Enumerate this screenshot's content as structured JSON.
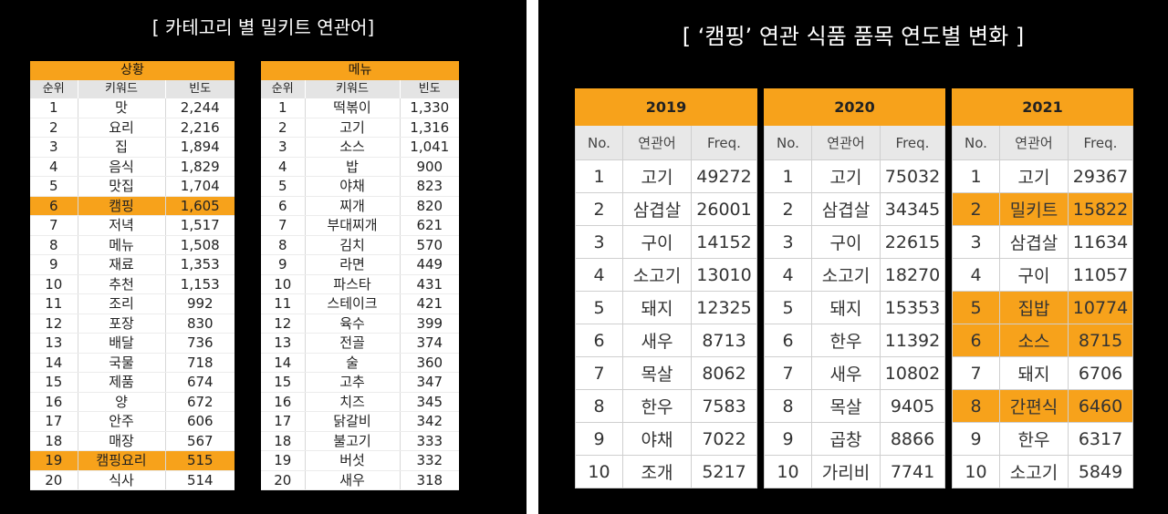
{
  "left": {
    "title": "[ 카테고리 별 밀키트 연관어]",
    "tables": [
      {
        "group": "상황",
        "headers": [
          "순위",
          "키워드",
          "빈도"
        ],
        "rows": [
          [
            "1",
            "맛",
            "2,244"
          ],
          [
            "2",
            "요리",
            "2,216"
          ],
          [
            "3",
            "집",
            "1,894"
          ],
          [
            "4",
            "음식",
            "1,829"
          ],
          [
            "5",
            "맛집",
            "1,704"
          ],
          [
            "6",
            "캠핑",
            "1,605"
          ],
          [
            "7",
            "저녁",
            "1,517"
          ],
          [
            "8",
            "메뉴",
            "1,508"
          ],
          [
            "9",
            "재료",
            "1,353"
          ],
          [
            "10",
            "추천",
            "1,153"
          ],
          [
            "11",
            "조리",
            "992"
          ],
          [
            "12",
            "포장",
            "830"
          ],
          [
            "13",
            "배달",
            "736"
          ],
          [
            "14",
            "국물",
            "718"
          ],
          [
            "15",
            "제품",
            "674"
          ],
          [
            "16",
            "양",
            "672"
          ],
          [
            "17",
            "안주",
            "606"
          ],
          [
            "18",
            "매장",
            "567"
          ],
          [
            "19",
            "캠핑요리",
            "515"
          ],
          [
            "20",
            "식사",
            "514"
          ]
        ],
        "highlight_rows": [
          5,
          18
        ]
      },
      {
        "group": "메뉴",
        "headers": [
          "순위",
          "키워드",
          "빈도"
        ],
        "rows": [
          [
            "1",
            "떡볶이",
            "1,330"
          ],
          [
            "2",
            "고기",
            "1,316"
          ],
          [
            "3",
            "소스",
            "1,041"
          ],
          [
            "4",
            "밥",
            "900"
          ],
          [
            "5",
            "야채",
            "823"
          ],
          [
            "6",
            "찌개",
            "820"
          ],
          [
            "7",
            "부대찌개",
            "621"
          ],
          [
            "8",
            "김치",
            "570"
          ],
          [
            "9",
            "라면",
            "449"
          ],
          [
            "10",
            "파스타",
            "431"
          ],
          [
            "11",
            "스테이크",
            "421"
          ],
          [
            "12",
            "육수",
            "399"
          ],
          [
            "13",
            "전골",
            "374"
          ],
          [
            "14",
            "술",
            "360"
          ],
          [
            "15",
            "고추",
            "347"
          ],
          [
            "16",
            "치즈",
            "345"
          ],
          [
            "17",
            "닭갈비",
            "342"
          ],
          [
            "18",
            "불고기",
            "333"
          ],
          [
            "19",
            "버섯",
            "332"
          ],
          [
            "20",
            "새우",
            "318"
          ]
        ],
        "highlight_rows": []
      }
    ]
  },
  "right": {
    "title": "[ ‘캠핑’ 연관 식품 품목 연도별 변화 ]",
    "tables": [
      {
        "year": "2019",
        "headers": [
          "No.",
          "연관어",
          "Freq."
        ],
        "rows": [
          [
            "1",
            "고기",
            "49272"
          ],
          [
            "2",
            "삼겹살",
            "26001"
          ],
          [
            "3",
            "구이",
            "14152"
          ],
          [
            "4",
            "소고기",
            "13010"
          ],
          [
            "5",
            "돼지",
            "12325"
          ],
          [
            "6",
            "새우",
            "8713"
          ],
          [
            "7",
            "목살",
            "8062"
          ],
          [
            "8",
            "한우",
            "7583"
          ],
          [
            "9",
            "야채",
            "7022"
          ],
          [
            "10",
            "조개",
            "5217"
          ]
        ],
        "highlight_rows": []
      },
      {
        "year": "2020",
        "headers": [
          "No.",
          "연관어",
          "Freq."
        ],
        "rows": [
          [
            "1",
            "고기",
            "75032"
          ],
          [
            "2",
            "삼겹살",
            "34345"
          ],
          [
            "3",
            "구이",
            "22615"
          ],
          [
            "4",
            "소고기",
            "18270"
          ],
          [
            "5",
            "돼지",
            "15353"
          ],
          [
            "6",
            "한우",
            "11392"
          ],
          [
            "7",
            "새우",
            "10802"
          ],
          [
            "8",
            "목살",
            "9405"
          ],
          [
            "9",
            "곱창",
            "8866"
          ],
          [
            "10",
            "가리비",
            "7741"
          ]
        ],
        "highlight_rows": []
      },
      {
        "year": "2021",
        "headers": [
          "No.",
          "연관어",
          "Freq."
        ],
        "rows": [
          [
            "1",
            "고기",
            "29367"
          ],
          [
            "2",
            "밀키트",
            "15822"
          ],
          [
            "3",
            "삼겹살",
            "11634"
          ],
          [
            "4",
            "구이",
            "11057"
          ],
          [
            "5",
            "집밥",
            "10774"
          ],
          [
            "6",
            "소스",
            "8715"
          ],
          [
            "7",
            "돼지",
            "6706"
          ],
          [
            "8",
            "간편식",
            "6460"
          ],
          [
            "9",
            "한우",
            "6317"
          ],
          [
            "10",
            "소고기",
            "5849"
          ]
        ],
        "highlight_rows": [
          1,
          4,
          5,
          7
        ]
      }
    ]
  },
  "colors": {
    "accent": "#f7a21b",
    "background": "#000000",
    "header_gray": "#e4e4e4"
  }
}
